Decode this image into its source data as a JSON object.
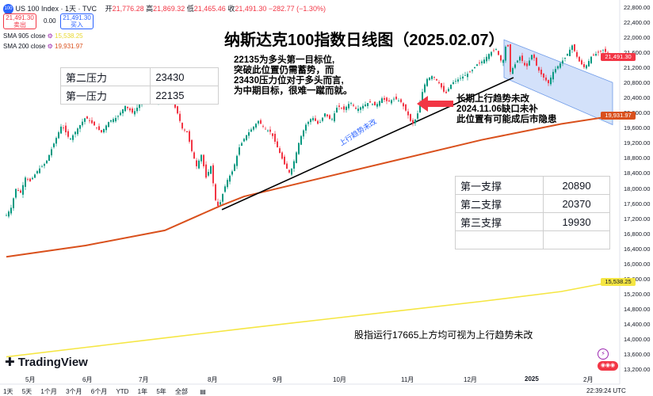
{
  "header": {
    "symbol_badge": "100",
    "symbol_title": "US 100 Index · 1天 · TVC",
    "ohlc": {
      "open_label": "开",
      "open": "21,776.28",
      "high_label": "高",
      "high": "21,869.32",
      "low_label": "低",
      "low": "21,465.46",
      "close_label": "收",
      "close": "21,491.30",
      "change": "−282.77 (−1.30%)"
    },
    "sell": {
      "price": "21,491.30",
      "label": "卖出"
    },
    "spread": "0.00",
    "buy": {
      "price": "21,491.30",
      "label": "买入"
    },
    "ma_lines": [
      {
        "label": "SMA 905 close",
        "value": "15,538.25",
        "color": "#f5e643"
      },
      {
        "label": "SMA 200 close",
        "value": "19,931.97",
        "color": "#d9501c"
      }
    ]
  },
  "annotations": {
    "title": "纳斯达克100指数日线图（2025.02.07）",
    "note_1": [
      "22135为多头第一目标位,",
      "突破此位置仍需蓄势，而",
      "23430压力位对于多头而言,",
      "为中期目标，很难一蹴而就。"
    ],
    "note_2": [
      "长期上行趋势未改",
      "2024.11.06缺口未补",
      "此位置有可能成后市隐患"
    ],
    "trendline_label": "上行趋势未改",
    "note_3": "股指运行17665上方均可视为上行趋势未改"
  },
  "resistance_table": [
    {
      "name": "第二压力",
      "value": "23430"
    },
    {
      "name": "第一压力",
      "value": "22135"
    }
  ],
  "support_table": [
    {
      "name": "第一支撑",
      "value": "20890"
    },
    {
      "name": "第二支撑",
      "value": "20370"
    },
    {
      "name": "第三支撑",
      "value": "19930"
    },
    {
      "name": "",
      "value": ""
    }
  ],
  "bottom_bar": {
    "timeframes": [
      "1天",
      "5天",
      "1个月",
      "3个月",
      "6个月",
      "YTD",
      "1年",
      "5年",
      "全部"
    ],
    "clock": "22:39:24 UTC"
  },
  "logo_text": "TradingView",
  "price_tags": [
    {
      "value": "21,491.30",
      "color": "#f23645"
    },
    {
      "value": "19,931.97",
      "color": "#d9501c"
    },
    {
      "value": "15,538.25",
      "color": "#f5e643"
    }
  ],
  "chart_data": {
    "type": "candlestick",
    "x_tick_labels": [
      "5月",
      "6月",
      "7月",
      "8月",
      "9月",
      "10月",
      "11月",
      "12月",
      "2025",
      "2月"
    ],
    "y_tick_labels": [
      "13,200.00",
      "13,600.00",
      "14,000.00",
      "14,400.00",
      "14,800.00",
      "15,200.00",
      "15,600.00",
      "16,000.00",
      "16,400.00",
      "16,800.00",
      "17,200.00",
      "17,600.00",
      "18,000.00",
      "18,400.00",
      "18,800.00",
      "19,200.00",
      "19,600.00",
      "20,000.00",
      "20,400.00",
      "20,800.00",
      "21,200.00",
      "21,600.00",
      "22,000.00",
      "22,400.00",
      "22,800.00"
    ],
    "ylim": [
      13100,
      22900
    ],
    "close_path": [
      [
        0,
        17300
      ],
      [
        6,
        17500
      ],
      [
        12,
        18000
      ],
      [
        18,
        17900
      ],
      [
        24,
        18300
      ],
      [
        30,
        18200
      ],
      [
        40,
        18500
      ],
      [
        50,
        18700
      ],
      [
        60,
        19200
      ],
      [
        70,
        19700
      ],
      [
        80,
        19300
      ],
      [
        90,
        19600
      ],
      [
        100,
        19900
      ],
      [
        110,
        19700
      ],
      [
        120,
        19500
      ],
      [
        130,
        19800
      ],
      [
        140,
        19900
      ],
      [
        150,
        20200
      ],
      [
        160,
        20000
      ],
      [
        170,
        20300
      ],
      [
        180,
        20500
      ],
      [
        190,
        20300
      ],
      [
        200,
        20600
      ],
      [
        210,
        20300
      ],
      [
        216,
        20000
      ],
      [
        222,
        19600
      ],
      [
        228,
        19500
      ],
      [
        234,
        19000
      ],
      [
        240,
        18600
      ],
      [
        246,
        18900
      ],
      [
        252,
        18300
      ],
      [
        258,
        18600
      ],
      [
        264,
        17700
      ],
      [
        268,
        17500
      ],
      [
        272,
        17800
      ],
      [
        278,
        18200
      ],
      [
        286,
        18500
      ],
      [
        294,
        19100
      ],
      [
        302,
        19400
      ],
      [
        310,
        19600
      ],
      [
        318,
        19800
      ],
      [
        326,
        19600
      ],
      [
        334,
        19500
      ],
      [
        340,
        19200
      ],
      [
        346,
        18900
      ],
      [
        352,
        18600
      ],
      [
        358,
        18400
      ],
      [
        364,
        18800
      ],
      [
        370,
        19300
      ],
      [
        378,
        19700
      ],
      [
        386,
        19900
      ],
      [
        394,
        19700
      ],
      [
        402,
        20000
      ],
      [
        410,
        19800
      ],
      [
        418,
        20200
      ],
      [
        426,
        20100
      ],
      [
        434,
        20300
      ],
      [
        442,
        20100
      ],
      [
        450,
        20200
      ],
      [
        458,
        20300
      ],
      [
        466,
        20200
      ],
      [
        474,
        20400
      ],
      [
        482,
        20300
      ],
      [
        490,
        20400
      ],
      [
        498,
        20300
      ],
      [
        506,
        20000
      ],
      [
        512,
        19700
      ],
      [
        518,
        19900
      ],
      [
        524,
        20500
      ],
      [
        530,
        20900
      ],
      [
        538,
        21000
      ],
      [
        546,
        20800
      ],
      [
        554,
        20500
      ],
      [
        562,
        20800
      ],
      [
        570,
        20900
      ],
      [
        578,
        21000
      ],
      [
        586,
        21100
      ],
      [
        594,
        21300
      ],
      [
        602,
        21400
      ],
      [
        610,
        21600
      ],
      [
        618,
        21700
      ],
      [
        626,
        21300
      ],
      [
        632,
        22000
      ],
      [
        636,
        21100
      ],
      [
        642,
        21300
      ],
      [
        648,
        21500
      ],
      [
        656,
        21200
      ],
      [
        664,
        21600
      ],
      [
        670,
        21200
      ],
      [
        676,
        21000
      ],
      [
        684,
        20800
      ],
      [
        690,
        21100
      ],
      [
        698,
        21300
      ],
      [
        706,
        21500
      ],
      [
        714,
        21800
      ],
      [
        722,
        21400
      ],
      [
        730,
        21200
      ],
      [
        738,
        21500
      ],
      [
        746,
        21600
      ],
      [
        754,
        21700
      ],
      [
        760,
        21490
      ]
    ],
    "sma_200": [
      [
        0,
        16200
      ],
      [
        100,
        16500
      ],
      [
        200,
        16900
      ],
      [
        270,
        17550
      ],
      [
        300,
        17800
      ],
      [
        400,
        18300
      ],
      [
        500,
        18800
      ],
      [
        600,
        19300
      ],
      [
        700,
        19720
      ],
      [
        765,
        19932
      ]
    ],
    "sma_905": [
      [
        0,
        13550
      ],
      [
        100,
        13800
      ],
      [
        200,
        14050
      ],
      [
        300,
        14300
      ],
      [
        400,
        14540
      ],
      [
        500,
        14780
      ],
      [
        600,
        15020
      ],
      [
        700,
        15280
      ],
      [
        765,
        15538
      ]
    ],
    "trendline": [
      [
        272,
        17450
      ],
      [
        640,
        20950
      ]
    ],
    "channel": [
      [
        628,
        21950
      ],
      [
        765,
        20820
      ],
      [
        765,
        19700
      ],
      [
        628,
        20950
      ]
    ],
    "resistance_values": [
      23430,
      22135
    ],
    "support_values": [
      20890,
      20370,
      19930
    ],
    "current_price": 21491.3
  }
}
